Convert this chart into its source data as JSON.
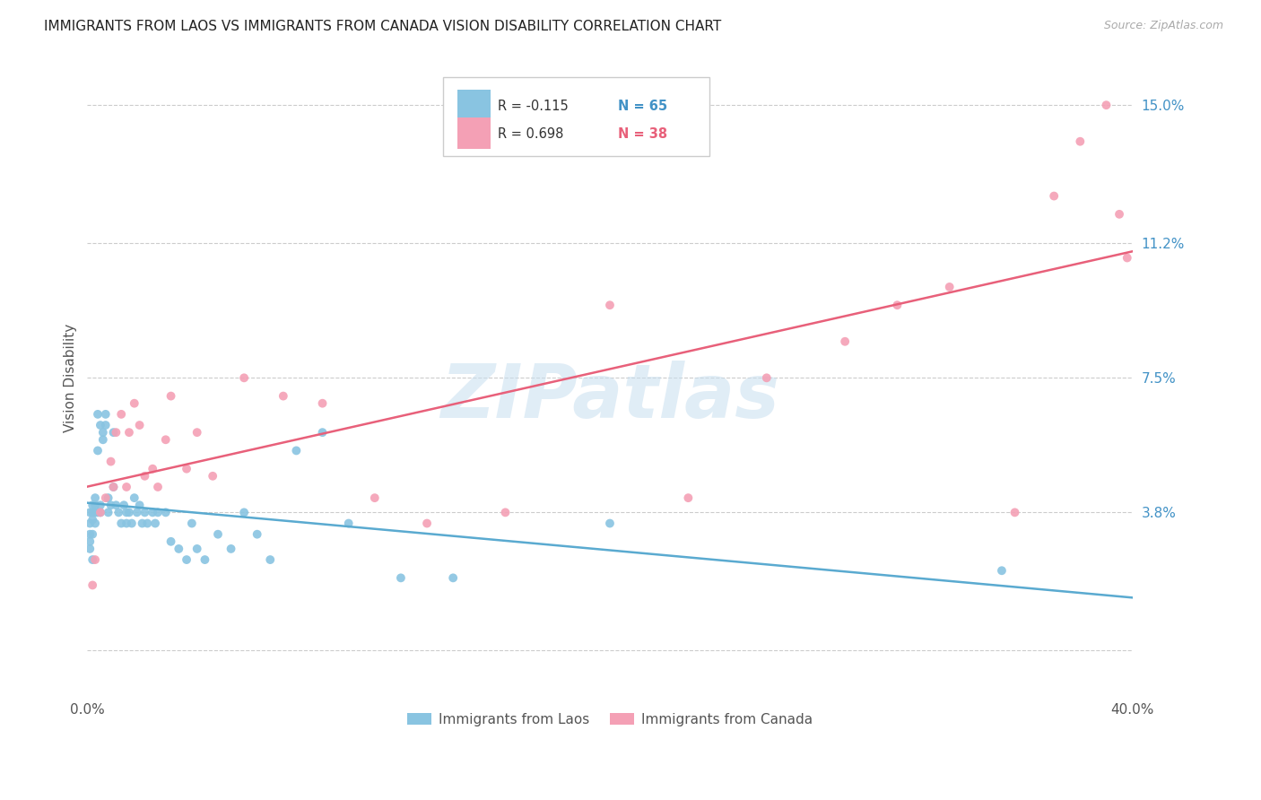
{
  "title": "IMMIGRANTS FROM LAOS VS IMMIGRANTS FROM CANADA VISION DISABILITY CORRELATION CHART",
  "source": "Source: ZipAtlas.com",
  "ylabel": "Vision Disability",
  "yticks": [
    0.0,
    0.038,
    0.075,
    0.112,
    0.15
  ],
  "ytick_labels": [
    "",
    "3.8%",
    "7.5%",
    "11.2%",
    "15.0%"
  ],
  "xlim": [
    0.0,
    0.4
  ],
  "ylim": [
    -0.012,
    0.162
  ],
  "laos_color": "#89c4e1",
  "canada_color": "#f4a0b5",
  "laos_line_color": "#5aaad0",
  "canada_line_color": "#e8607a",
  "laos_R": -0.115,
  "laos_N": 65,
  "canada_R": 0.698,
  "canada_N": 38,
  "watermark": "ZIPatlas",
  "laos_x": [
    0.001,
    0.001,
    0.001,
    0.001,
    0.001,
    0.002,
    0.002,
    0.002,
    0.002,
    0.002,
    0.003,
    0.003,
    0.003,
    0.003,
    0.004,
    0.004,
    0.004,
    0.005,
    0.005,
    0.005,
    0.006,
    0.006,
    0.007,
    0.007,
    0.008,
    0.008,
    0.009,
    0.01,
    0.01,
    0.011,
    0.012,
    0.013,
    0.014,
    0.015,
    0.015,
    0.016,
    0.017,
    0.018,
    0.019,
    0.02,
    0.021,
    0.022,
    0.023,
    0.025,
    0.026,
    0.027,
    0.03,
    0.032,
    0.035,
    0.038,
    0.04,
    0.042,
    0.045,
    0.05,
    0.055,
    0.06,
    0.065,
    0.07,
    0.08,
    0.09,
    0.1,
    0.12,
    0.14,
    0.2,
    0.35
  ],
  "laos_y": [
    0.03,
    0.028,
    0.032,
    0.038,
    0.035,
    0.036,
    0.038,
    0.04,
    0.032,
    0.025,
    0.04,
    0.038,
    0.035,
    0.042,
    0.038,
    0.065,
    0.055,
    0.062,
    0.04,
    0.038,
    0.06,
    0.058,
    0.065,
    0.062,
    0.038,
    0.042,
    0.04,
    0.045,
    0.06,
    0.04,
    0.038,
    0.035,
    0.04,
    0.038,
    0.035,
    0.038,
    0.035,
    0.042,
    0.038,
    0.04,
    0.035,
    0.038,
    0.035,
    0.038,
    0.035,
    0.038,
    0.038,
    0.03,
    0.028,
    0.025,
    0.035,
    0.028,
    0.025,
    0.032,
    0.028,
    0.038,
    0.032,
    0.025,
    0.055,
    0.06,
    0.035,
    0.02,
    0.02,
    0.035,
    0.022
  ],
  "canada_x": [
    0.002,
    0.003,
    0.005,
    0.007,
    0.009,
    0.01,
    0.011,
    0.013,
    0.015,
    0.016,
    0.018,
    0.02,
    0.022,
    0.025,
    0.027,
    0.03,
    0.032,
    0.038,
    0.042,
    0.048,
    0.06,
    0.075,
    0.09,
    0.11,
    0.13,
    0.16,
    0.2,
    0.23,
    0.26,
    0.29,
    0.31,
    0.33,
    0.355,
    0.37,
    0.38,
    0.39,
    0.395,
    0.398
  ],
  "canada_y": [
    0.018,
    0.025,
    0.038,
    0.042,
    0.052,
    0.045,
    0.06,
    0.065,
    0.045,
    0.06,
    0.068,
    0.062,
    0.048,
    0.05,
    0.045,
    0.058,
    0.07,
    0.05,
    0.06,
    0.048,
    0.075,
    0.07,
    0.068,
    0.042,
    0.035,
    0.038,
    0.095,
    0.042,
    0.075,
    0.085,
    0.095,
    0.1,
    0.038,
    0.125,
    0.14,
    0.15,
    0.12,
    0.108
  ]
}
